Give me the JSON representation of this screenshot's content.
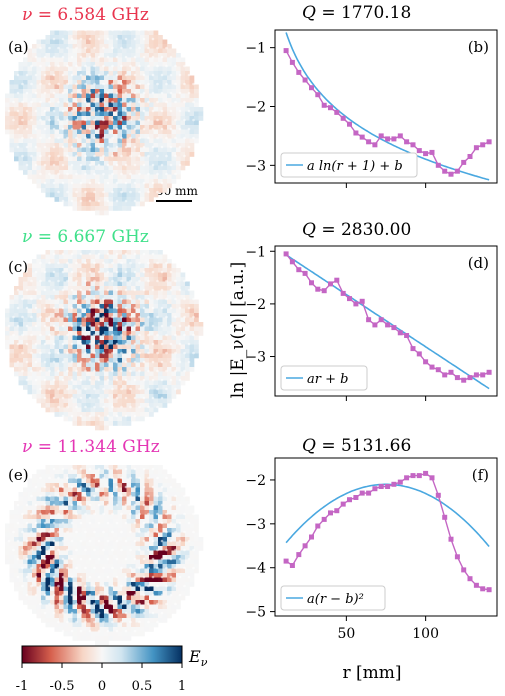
{
  "maps": [
    {
      "label": "(a)",
      "nu_symbol": "ν",
      "nu_value": "= 6.584 GHz",
      "color": "#e8344e",
      "type": "random-low"
    },
    {
      "label": "(c)",
      "nu_symbol": "ν",
      "nu_value": "= 6.667 GHz",
      "color": "#3fe08a",
      "type": "random-high"
    },
    {
      "label": "(e)",
      "nu_symbol": "ν",
      "nu_value": "= 11.344 GHz",
      "color": "#e435b4",
      "type": "ring"
    }
  ],
  "scalebar": {
    "label": "50 mm"
  },
  "colorbar": {
    "symbol": "E",
    "subscript": "ν",
    "ticks": [
      "-1",
      "-0.5",
      "0",
      "0.5",
      "1"
    ]
  },
  "ylabel": "ln |E_ν(r)| [a.u.]",
  "xlabel": "r [mm]",
  "chart_data": [
    {
      "type": "line",
      "panel": "(b)",
      "title_symbol": "Q",
      "title_value": "= 1770.18",
      "xlim": [
        5,
        145
      ],
      "ylim": [
        -3.3,
        -0.7
      ],
      "xticks": [
        50,
        100
      ],
      "yticks": [
        -1,
        -2,
        -3
      ],
      "series": [
        {
          "name": "data",
          "x": [
            12,
            16,
            20,
            24,
            28,
            32,
            36,
            40,
            44,
            48,
            52,
            56,
            60,
            64,
            68,
            72,
            76,
            80,
            84,
            88,
            92,
            96,
            100,
            104,
            108,
            112,
            116,
            120,
            124,
            128,
            132,
            136,
            140
          ],
          "y": [
            -1.05,
            -1.25,
            -1.42,
            -1.55,
            -1.68,
            -1.8,
            -1.98,
            -2.02,
            -2.1,
            -2.2,
            -2.3,
            -2.45,
            -2.52,
            -2.6,
            -2.65,
            -2.5,
            -2.55,
            -2.55,
            -2.5,
            -2.6,
            -2.65,
            -2.75,
            -2.8,
            -2.78,
            -3.0,
            -3.1,
            -3.15,
            -3.1,
            -2.95,
            -2.85,
            -2.7,
            -2.65,
            -2.6
          ],
          "color": "#c466c4"
        },
        {
          "name": "a ln(r + 1) + b",
          "fit": "log",
          "params": {
            "a": -1.05,
            "b": 1.95
          },
          "color": "#4aa8e0"
        }
      ],
      "legend": {
        "text": "a ln(r + 1) + b",
        "placement": "lower-left"
      }
    },
    {
      "type": "line",
      "panel": "(d)",
      "title_symbol": "Q",
      "title_value": "= 2830.00",
      "xlim": [
        5,
        145
      ],
      "ylim": [
        -3.75,
        -0.9
      ],
      "xticks": [
        50,
        100
      ],
      "yticks": [
        -1,
        -2,
        -3
      ],
      "series": [
        {
          "name": "data",
          "x": [
            12,
            16,
            20,
            24,
            28,
            32,
            36,
            40,
            44,
            48,
            52,
            56,
            60,
            64,
            68,
            72,
            76,
            80,
            84,
            88,
            92,
            96,
            100,
            104,
            108,
            112,
            116,
            120,
            124,
            128,
            132,
            136,
            140
          ],
          "y": [
            -1.05,
            -1.2,
            -1.35,
            -1.42,
            -1.6,
            -1.72,
            -1.75,
            -1.62,
            -1.55,
            -1.8,
            -1.9,
            -2.0,
            -1.95,
            -2.3,
            -2.4,
            -2.3,
            -2.4,
            -2.45,
            -2.55,
            -2.6,
            -2.85,
            -2.95,
            -3.1,
            -3.2,
            -3.25,
            -3.35,
            -3.3,
            -3.4,
            -3.45,
            -3.4,
            -3.35,
            -3.35,
            -3.3
          ],
          "color": "#c466c4"
        },
        {
          "name": "ar + b",
          "fit": "linear",
          "params": {
            "a": -0.01985,
            "b": -0.83
          },
          "color": "#4aa8e0"
        }
      ],
      "legend": {
        "text": "ar + b",
        "placement": "lower-left"
      }
    },
    {
      "type": "line",
      "panel": "(f)",
      "title_symbol": "Q",
      "title_value": "= 5131.66",
      "xlim": [
        5,
        145
      ],
      "ylim": [
        -5.1,
        -1.5
      ],
      "xticks": [
        50,
        100
      ],
      "yticks": [
        -2,
        -3,
        -4,
        -5
      ],
      "series": [
        {
          "name": "data",
          "x": [
            12,
            16,
            20,
            24,
            28,
            32,
            36,
            40,
            44,
            48,
            52,
            56,
            60,
            64,
            68,
            72,
            76,
            80,
            84,
            88,
            92,
            96,
            100,
            104,
            108,
            112,
            116,
            120,
            124,
            128,
            132,
            136,
            140
          ],
          "y": [
            -3.85,
            -3.95,
            -3.7,
            -3.5,
            -3.3,
            -3.05,
            -2.9,
            -2.75,
            -2.7,
            -2.55,
            -2.45,
            -2.4,
            -2.3,
            -2.3,
            -2.2,
            -2.15,
            -2.15,
            -2.1,
            -2.05,
            -1.95,
            -1.9,
            -1.9,
            -1.85,
            -1.95,
            -2.35,
            -2.85,
            -3.35,
            -3.75,
            -4.05,
            -4.25,
            -4.4,
            -4.48,
            -4.5
          ],
          "color": "#c466c4"
        },
        {
          "name": "a(r − b)²",
          "fit": "quadratic",
          "params": {
            "a": -0.000335,
            "b": 75,
            "c": -2.1
          },
          "color": "#4aa8e0"
        }
      ],
      "legend": {
        "text": "a(r − b)²",
        "placement": "lower-left"
      }
    }
  ]
}
